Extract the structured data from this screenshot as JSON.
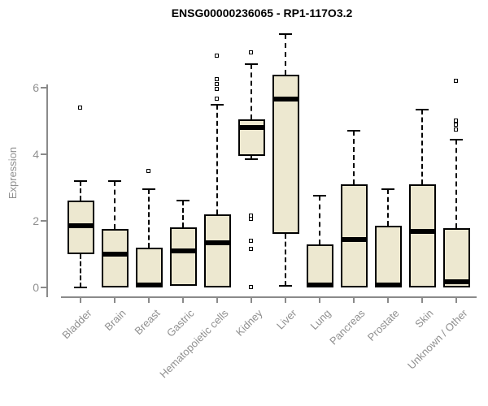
{
  "chart_data": {
    "type": "boxplot",
    "title": "ENSG00000236065 - RP1-117O3.2",
    "ylabel": "Expression",
    "xlabel": "",
    "yticks": [
      0,
      2,
      4,
      6
    ],
    "ylim": [
      0,
      7.7
    ],
    "grid": false,
    "legend": "none",
    "categories": [
      "Bladder",
      "Brain",
      "Breast",
      "Gastric",
      "Hematopoietic cells",
      "Kidney",
      "Liver",
      "Lung",
      "Pancreas",
      "Prostate",
      "Skin",
      "Unknown / Other"
    ],
    "series": [
      {
        "category": "Bladder",
        "low": 0,
        "q1": 1.0,
        "median": 1.85,
        "q3": 2.6,
        "high": 3.2,
        "outliers": [
          5.4
        ]
      },
      {
        "category": "Brain",
        "low": 0,
        "q1": 0,
        "median": 1.0,
        "q3": 1.75,
        "high": 3.2,
        "outliers": []
      },
      {
        "category": "Breast",
        "low": 0,
        "q1": 0,
        "median": 0.05,
        "q3": 1.2,
        "high": 2.95,
        "outliers": [
          3.5
        ]
      },
      {
        "category": "Gastric",
        "low": 0.05,
        "q1": 0.05,
        "median": 1.1,
        "q3": 1.8,
        "high": 2.6,
        "outliers": []
      },
      {
        "category": "Hematopoietic cells",
        "low": 0,
        "q1": 0,
        "median": 1.35,
        "q3": 2.2,
        "high": 5.5,
        "outliers": [
          6.95,
          6.25,
          6.1,
          5.95,
          5.65
        ]
      },
      {
        "category": "Kidney",
        "low": 3.85,
        "q1": 3.95,
        "median": 4.8,
        "q3": 5.05,
        "high": 6.7,
        "outliers": [
          7.05,
          2.15,
          2.05,
          1.4,
          1.15,
          0
        ]
      },
      {
        "category": "Liver",
        "low": 0.05,
        "q1": 1.6,
        "median": 5.65,
        "q3": 6.4,
        "high": 7.6,
        "outliers": []
      },
      {
        "category": "Lung",
        "low": 0,
        "q1": 0,
        "median": 0.05,
        "q3": 1.3,
        "high": 2.75,
        "outliers": []
      },
      {
        "category": "Pancreas",
        "low": 0,
        "q1": 0,
        "median": 1.45,
        "q3": 3.1,
        "high": 4.7,
        "outliers": []
      },
      {
        "category": "Prostate",
        "low": 0,
        "q1": 0,
        "median": 0.05,
        "q3": 1.85,
        "high": 2.95,
        "outliers": []
      },
      {
        "category": "Skin",
        "low": 0,
        "q1": 0,
        "median": 1.68,
        "q3": 3.1,
        "high": 5.35,
        "outliers": []
      },
      {
        "category": "Unknown / Other",
        "low": 0,
        "q1": 0,
        "median": 0.17,
        "q3": 1.78,
        "high": 4.45,
        "outliers": [
          6.2,
          5.0,
          4.88,
          4.72
        ]
      }
    ],
    "style": {
      "box_fill": "#EDE8D0",
      "box_stroke": "#000000",
      "axis_color": "#8a8a8a",
      "text_color": "#909090",
      "title_color": "#000000",
      "background": "#ffffff"
    }
  }
}
